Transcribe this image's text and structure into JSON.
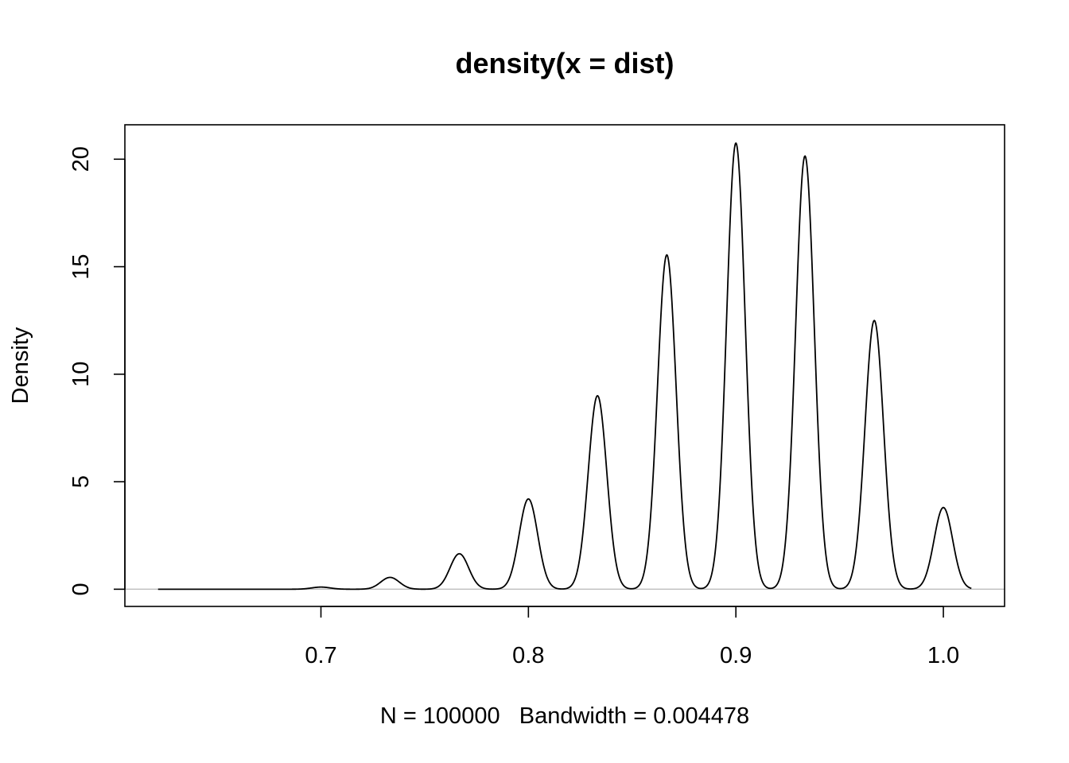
{
  "chart_data": {
    "type": "line",
    "title": "density(x = dist)",
    "xlabel": "N = 100000   Bandwidth = 0.004478",
    "ylabel": "Density",
    "xlim": [
      0.6055,
      1.0295
    ],
    "ylim": [
      -0.8,
      21.6
    ],
    "x_ticks": [
      0.7,
      0.8,
      0.9,
      1.0
    ],
    "x_tick_labels": [
      "0.7",
      "0.8",
      "0.9",
      "1.0"
    ],
    "y_ticks": [
      0,
      5,
      10,
      15,
      20
    ],
    "y_tick_labels": [
      "0",
      "5",
      "10",
      "15",
      "20"
    ],
    "grid": false,
    "curve_range": [
      0.6215,
      1.0135
    ],
    "bandwidth": 0.004478,
    "peaks": [
      {
        "x": 0.7,
        "y": 0.1
      },
      {
        "x": 0.7333,
        "y": 0.55
      },
      {
        "x": 0.7667,
        "y": 1.65
      },
      {
        "x": 0.8,
        "y": 4.2
      },
      {
        "x": 0.8333,
        "y": 9.0
      },
      {
        "x": 0.8667,
        "y": 15.55
      },
      {
        "x": 0.9,
        "y": 20.75
      },
      {
        "x": 0.9333,
        "y": 20.15
      },
      {
        "x": 0.9667,
        "y": 12.5
      },
      {
        "x": 1.0,
        "y": 3.8
      }
    ],
    "colors": {
      "line": "#000000",
      "zero_line": "#bebebe",
      "frame": "#000000"
    }
  }
}
